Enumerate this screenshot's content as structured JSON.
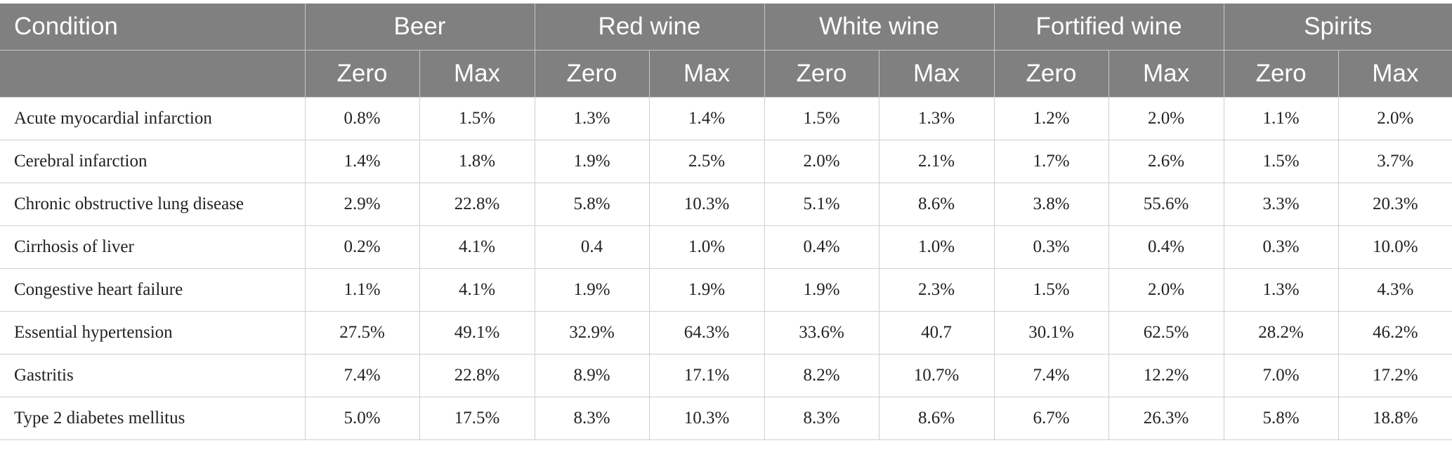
{
  "table": {
    "condition_header": "Condition",
    "groups": [
      "Beer",
      "Red wine",
      "White wine",
      "Fortified wine",
      "Spirits"
    ],
    "subheaders": [
      "Zero",
      "Max"
    ],
    "rows": [
      {
        "condition": "Acute myocardial infarction",
        "values": [
          "0.8%",
          "1.5%",
          "1.3%",
          "1.4%",
          "1.5%",
          "1.3%",
          "1.2%",
          "2.0%",
          "1.1%",
          "2.0%"
        ]
      },
      {
        "condition": "Cerebral infarction",
        "values": [
          "1.4%",
          "1.8%",
          "1.9%",
          "2.5%",
          "2.0%",
          "2.1%",
          "1.7%",
          "2.6%",
          "1.5%",
          "3.7%"
        ]
      },
      {
        "condition": "Chronic obstructive lung disease",
        "values": [
          "2.9%",
          "22.8%",
          "5.8%",
          "10.3%",
          "5.1%",
          "8.6%",
          "3.8%",
          "55.6%",
          "3.3%",
          "20.3%"
        ]
      },
      {
        "condition": "Cirrhosis of liver",
        "values": [
          "0.2%",
          "4.1%",
          "0.4",
          "1.0%",
          "0.4%",
          "1.0%",
          "0.3%",
          "0.4%",
          "0.3%",
          "10.0%"
        ]
      },
      {
        "condition": "Congestive heart failure",
        "values": [
          "1.1%",
          "4.1%",
          "1.9%",
          "1.9%",
          "1.9%",
          "2.3%",
          "1.5%",
          "2.0%",
          "1.3%",
          "4.3%"
        ]
      },
      {
        "condition": "Essential hypertension",
        "values": [
          "27.5%",
          "49.1%",
          "32.9%",
          "64.3%",
          "33.6%",
          "40.7",
          "30.1%",
          "62.5%",
          "28.2%",
          "46.2%"
        ]
      },
      {
        "condition": "Gastritis",
        "values": [
          "7.4%",
          "22.8%",
          "8.9%",
          "17.1%",
          "8.2%",
          "10.7%",
          "7.4%",
          "12.2%",
          "7.0%",
          "17.2%"
        ]
      },
      {
        "condition": "Type 2 diabetes mellitus",
        "values": [
          "5.0%",
          "17.5%",
          "8.3%",
          "10.3%",
          "8.3%",
          "8.6%",
          "6.7%",
          "26.3%",
          "5.8%",
          "18.8%"
        ]
      }
    ]
  }
}
